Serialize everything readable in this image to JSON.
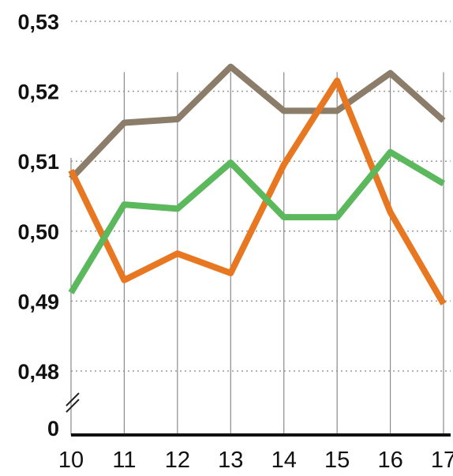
{
  "chart_data": {
    "type": "line",
    "x": [
      "10",
      "11",
      "12",
      "13",
      "14",
      "15",
      "16",
      "17"
    ],
    "y_ticks": [
      "0,53",
      "0,52",
      "0,51",
      "0,50",
      "0,49",
      "0,48"
    ],
    "y_tick_values": [
      0.53,
      0.52,
      0.51,
      0.5,
      0.49,
      0.48
    ],
    "y_zero_label": "0",
    "ylim": [
      0.48,
      0.53
    ],
    "axis_break": true,
    "grid": "horizontal dotted, vertical solid",
    "series": [
      {
        "color": "#8c7d6b",
        "values": [
          0.5075,
          0.5155,
          0.516,
          0.5235,
          0.5172,
          0.5172,
          0.5226,
          0.5158
        ]
      },
      {
        "color": "#e87722",
        "values": [
          0.5087,
          0.493,
          0.4968,
          0.494,
          0.5095,
          0.5215,
          0.5027,
          0.4896
        ]
      },
      {
        "color": "#5cb85c",
        "values": [
          0.4912,
          0.5038,
          0.5032,
          0.5098,
          0.502,
          0.502,
          0.5113,
          0.5068
        ]
      }
    ]
  }
}
